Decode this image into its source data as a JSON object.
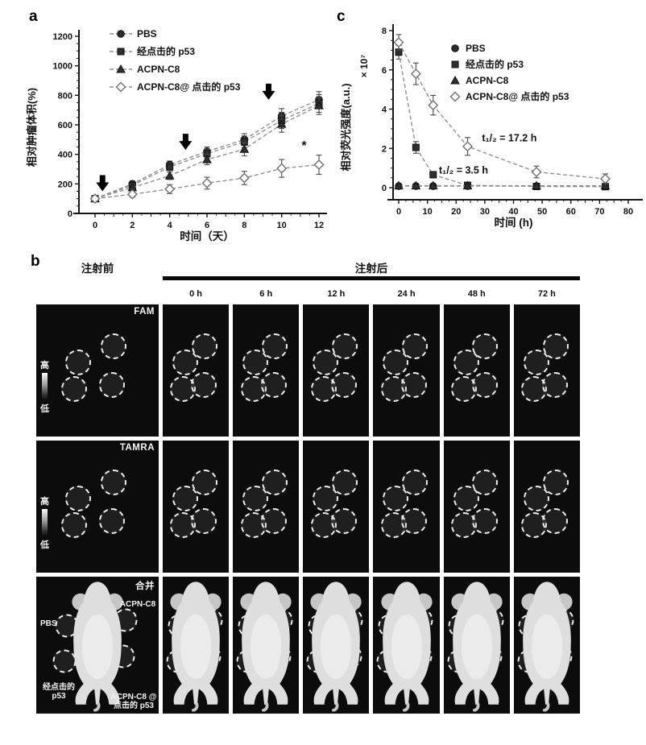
{
  "figure": {
    "panel_a_label": "a",
    "panel_b_label": "b",
    "panel_c_label": "c"
  },
  "colors": {
    "background": "#ffffff",
    "axis": "#161616",
    "series_line": "#909090",
    "marker_fill": "#2e2e2e",
    "cell_background": "#0c0c0c",
    "roi_stroke": "#ececec",
    "mouse_fill": "#dedede",
    "injection_arrow": "#000000"
  },
  "chart_data": [
    {
      "id": "a",
      "type": "line",
      "title": "",
      "xlabel": "时间（天）",
      "ylabel": "相对肿瘤体积(%)",
      "xlim": [
        0,
        12
      ],
      "ylim": [
        0,
        1200
      ],
      "xticks": [
        0,
        2,
        4,
        6,
        8,
        10,
        12
      ],
      "yticks": [
        0,
        200,
        400,
        600,
        800,
        1000,
        1200
      ],
      "x": [
        0,
        2,
        4,
        6,
        8,
        10,
        12
      ],
      "legend_position": "upper-left-inside",
      "grid": false,
      "series": [
        {
          "name": "PBS",
          "marker": "circle",
          "open": false,
          "values": [
            100,
            200,
            330,
            420,
            500,
            660,
            770
          ],
          "errors": [
            15,
            20,
            25,
            30,
            40,
            50,
            55
          ]
        },
        {
          "name": "经点击的 p53",
          "marker": "square",
          "open": false,
          "values": [
            100,
            190,
            315,
            405,
            485,
            630,
            745
          ],
          "errors": [
            15,
            20,
            25,
            30,
            40,
            55,
            60
          ]
        },
        {
          "name": "ACPN-C8",
          "marker": "triangle",
          "open": false,
          "values": [
            100,
            175,
            255,
            365,
            435,
            605,
            730
          ],
          "errors": [
            15,
            20,
            25,
            35,
            45,
            55,
            60
          ]
        },
        {
          "name": "ACPN-C8@ 点击的 p53",
          "marker": "diamond",
          "open": true,
          "values": [
            100,
            130,
            165,
            205,
            240,
            305,
            330
          ],
          "errors": [
            15,
            20,
            30,
            40,
            45,
            60,
            65
          ]
        }
      ],
      "injection_arrows": [
        {
          "x": 0.4,
          "y": 150
        },
        {
          "x": 4.85,
          "y": 430
        },
        {
          "x": 9.3,
          "y": 770
        }
      ],
      "significance": {
        "text": "*",
        "x": 11.2,
        "y": 430
      }
    },
    {
      "id": "c",
      "type": "line",
      "title": "",
      "xlabel": "时间 (h)",
      "ylabel": "相对荧光强度(a.u.)",
      "y_scale_note": "× 10⁷",
      "xlim": [
        0,
        80
      ],
      "ylim": [
        0,
        8
      ],
      "xticks": [
        0,
        10,
        20,
        30,
        40,
        50,
        60,
        70,
        80
      ],
      "yticks": [
        0,
        2,
        4,
        6,
        8
      ],
      "x": [
        0,
        6,
        12,
        24,
        48,
        72
      ],
      "legend_position": "upper-right-inside",
      "grid": false,
      "series": [
        {
          "name": "PBS",
          "marker": "circle",
          "open": false,
          "values": [
            0.08,
            0.08,
            0.08,
            0.08,
            0.08,
            0.08
          ]
        },
        {
          "name": "经点击的 p53",
          "marker": "square",
          "open": false,
          "values": [
            6.9,
            2.05,
            0.66,
            0.12,
            0.06,
            0.05
          ],
          "errors": [
            0.35,
            0.3,
            0.15,
            0.05,
            0.03,
            0.03
          ]
        },
        {
          "name": "ACPN-C8",
          "marker": "triangle",
          "open": false,
          "values": [
            0.1,
            0.1,
            0.1,
            0.1,
            0.1,
            0.1
          ]
        },
        {
          "name": "ACPN-C8@ 点击的 p53",
          "marker": "diamond",
          "open": true,
          "values": [
            7.4,
            5.8,
            4.2,
            2.1,
            0.8,
            0.45
          ],
          "errors": [
            0.4,
            0.55,
            0.5,
            0.45,
            0.3,
            0.25
          ]
        }
      ],
      "annotations": [
        {
          "text": "t₁/₂ = 17.2 h",
          "x": 29,
          "y": 2.35
        },
        {
          "text": "t₁/₂ = 3.5 h",
          "x": 14,
          "y": 0.72
        }
      ]
    }
  ],
  "panel_b": {
    "pre_label": "注射前",
    "post_label": "注射后",
    "timepoints": [
      "0 h",
      "6 h",
      "12 h",
      "24 h",
      "48 h",
      "72 h"
    ],
    "scale": {
      "high": "高",
      "low": "低"
    },
    "rows": [
      {
        "label": "FAM",
        "type": "fluorescence"
      },
      {
        "label": "TAMRA",
        "type": "fluorescence"
      },
      {
        "label": "合并",
        "type": "merge"
      }
    ],
    "merge_labels": {
      "pbs": "PBS",
      "acpn_c8": "ACPN-C8",
      "clicked_p53": "经点击的 p53",
      "acpn_c8_clicked_p53": "ACPN-C8 @ 点击的 p53"
    }
  }
}
